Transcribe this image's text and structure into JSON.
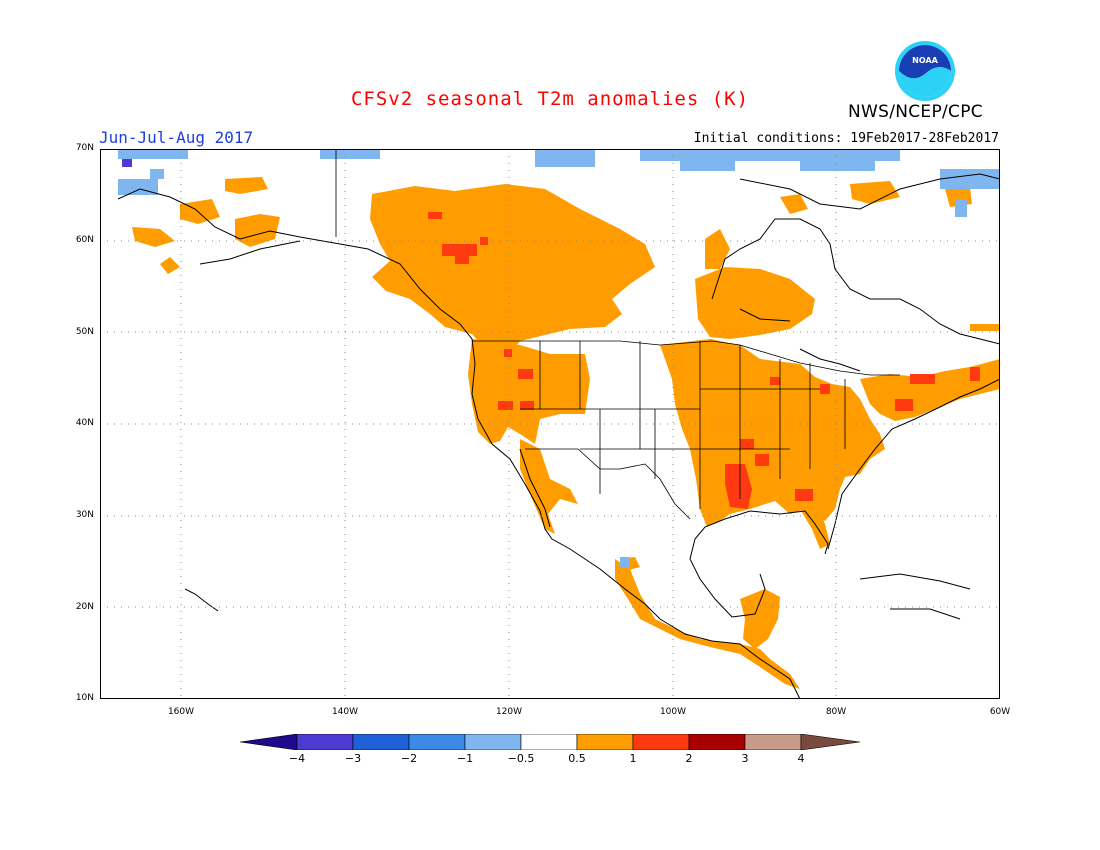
{
  "header": {
    "title": "CFSv2 seasonal T2m anomalies (K)",
    "season": "Jun-Jul-Aug 2017",
    "initial_conditions": "Initial conditions: 19Feb2017-28Feb2017",
    "agency": "NWS/NCEP/CPC",
    "logo_text": "NOAA"
  },
  "map": {
    "projection": "lat-lon",
    "lon_range": [
      -171,
      -60
    ],
    "lat_range": [
      10,
      70
    ],
    "grid": "dotted",
    "lat_ticks": [
      "10N",
      "20N",
      "30N",
      "40N",
      "50N",
      "60N",
      "70N"
    ],
    "lon_ticks": [
      "160W",
      "140W",
      "120W",
      "100W",
      "80W",
      "60W"
    ]
  },
  "legend": {
    "labels": [
      "−4",
      "−3",
      "−2",
      "−1",
      "−0.5",
      "0.5",
      "1",
      "2",
      "3",
      "4"
    ],
    "colors": [
      "#1e0a8c",
      "#4b3bd1",
      "#1f62d8",
      "#3c8ae8",
      "#7fb6f0",
      "#ffffff",
      "#ff9d00",
      "#ff3a10",
      "#a80000",
      "#c89b88",
      "#7a4a3c"
    ]
  }
}
